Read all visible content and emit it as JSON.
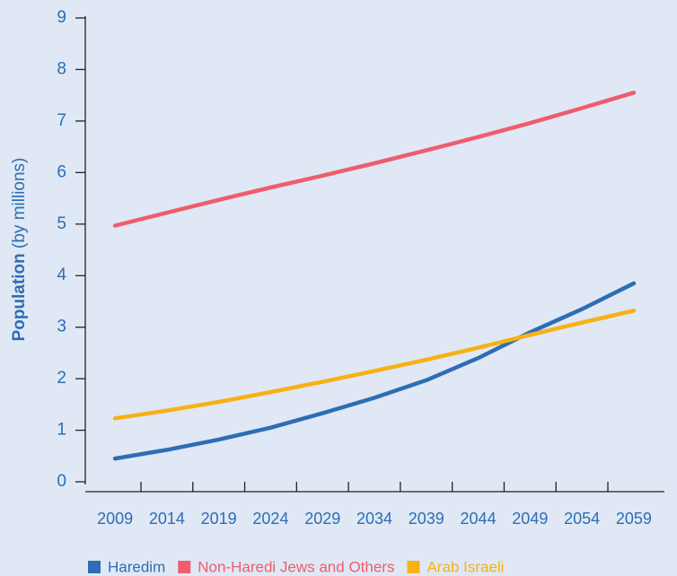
{
  "chart_data": {
    "type": "line",
    "y_label": "Population",
    "y_label_unit": "(by millions)",
    "x": [
      2009,
      2014,
      2019,
      2024,
      2029,
      2034,
      2039,
      2044,
      2049,
      2054,
      2059
    ],
    "xlim": [
      2007,
      2061
    ],
    "xticks": [
      2009,
      2014,
      2019,
      2024,
      2029,
      2034,
      2039,
      2044,
      2049,
      2054,
      2059
    ],
    "ylim": [
      0,
      9
    ],
    "yticks": [
      0,
      1,
      2,
      3,
      4,
      5,
      6,
      7,
      8,
      9
    ],
    "grid": false,
    "legend": "bottom",
    "series": [
      {
        "name": "Haredim",
        "color": "#2e6db4",
        "values": [
          0.45,
          0.62,
          0.82,
          1.05,
          1.33,
          1.63,
          1.97,
          2.4,
          2.9,
          3.35,
          3.85
        ]
      },
      {
        "name": "Non-Haredi Jews and Others",
        "color": "#ee5d6c",
        "values": [
          4.97,
          5.22,
          5.47,
          5.71,
          5.94,
          6.18,
          6.43,
          6.69,
          6.96,
          7.25,
          7.55
        ]
      },
      {
        "name": "Arab Israeli",
        "color": "#f7b116",
        "values": [
          1.23,
          1.38,
          1.55,
          1.74,
          1.94,
          2.15,
          2.37,
          2.6,
          2.85,
          3.09,
          3.32
        ]
      }
    ]
  }
}
